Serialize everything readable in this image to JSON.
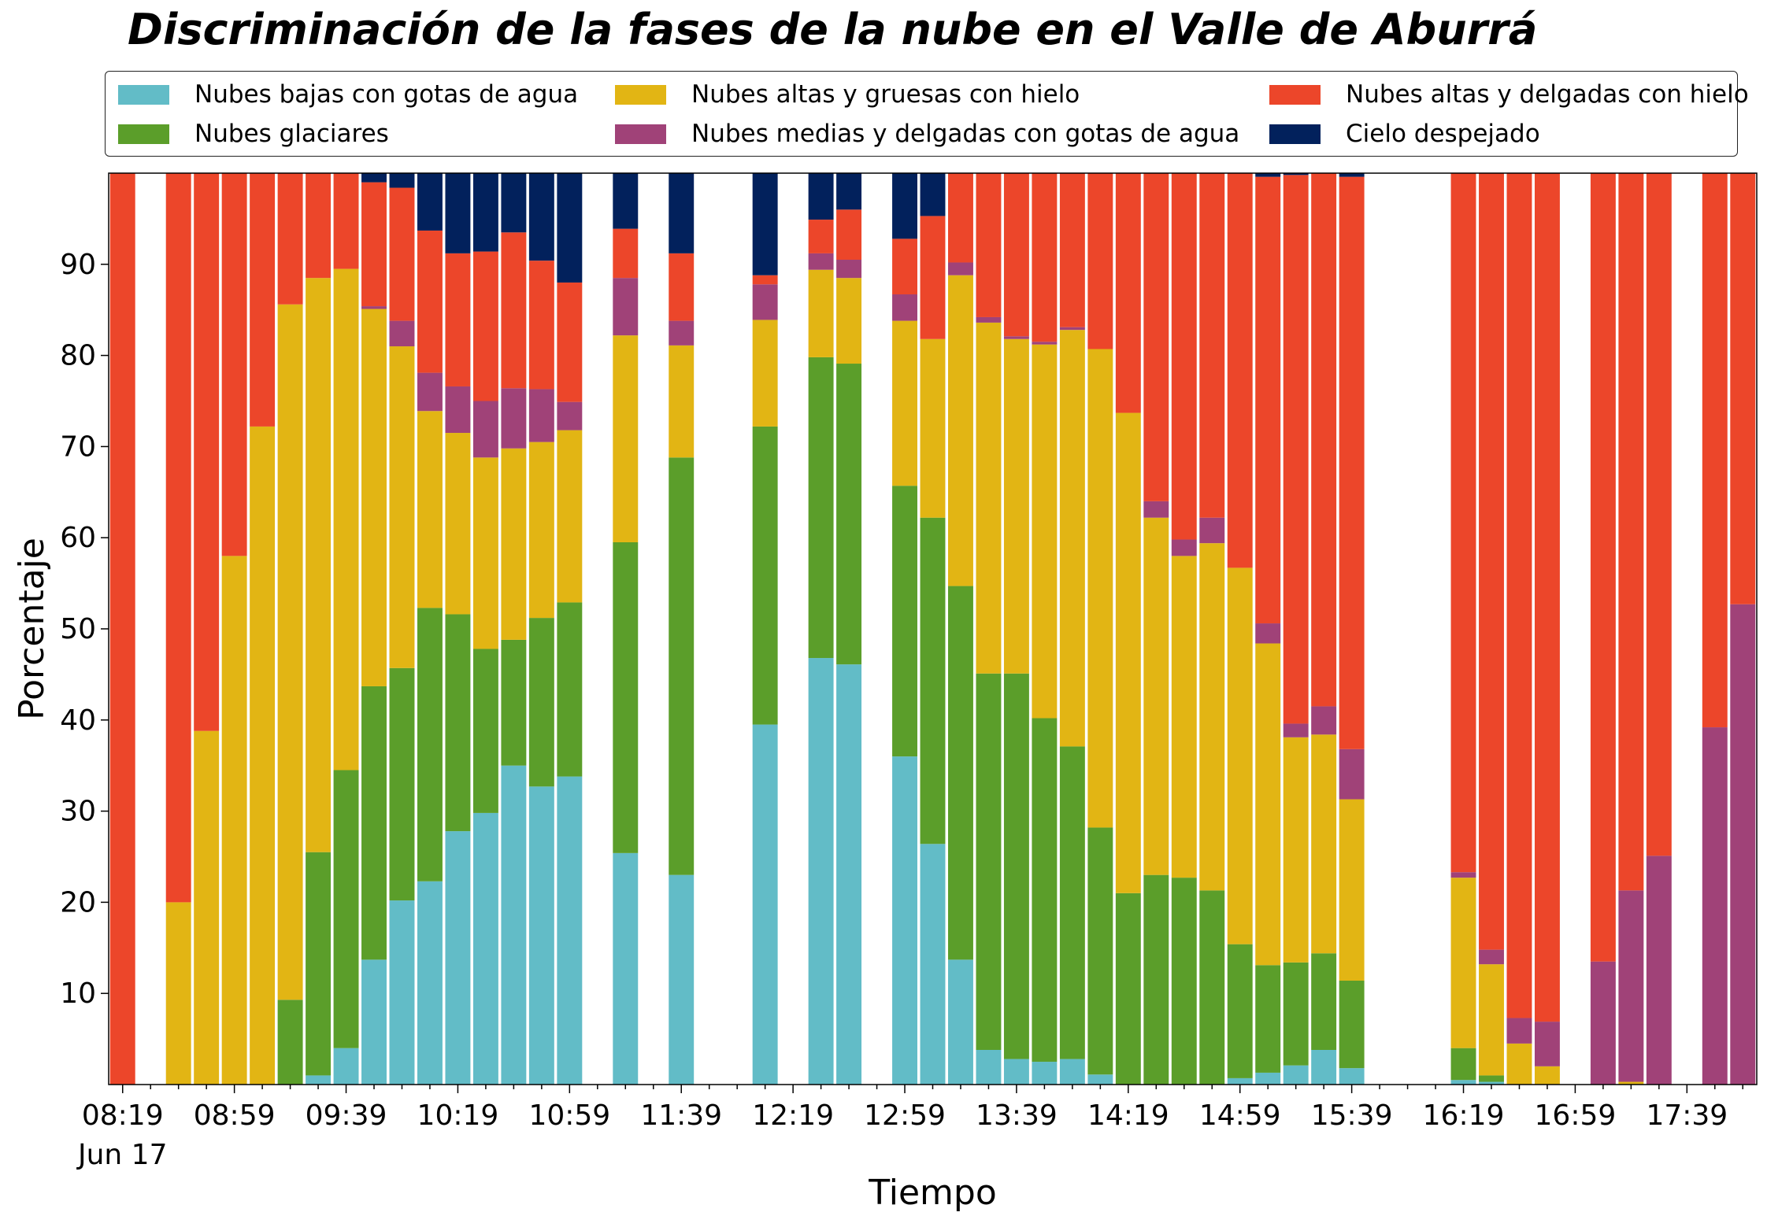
{
  "chart_data": {
    "type": "bar",
    "stacked": true,
    "title": "Discriminación de la fases de la nube en el Valle de Aburrá",
    "xlabel": "Tiempo",
    "ylabel": "Porcentaje",
    "ylim": [
      0,
      100
    ],
    "yticks": [
      10,
      20,
      30,
      40,
      50,
      60,
      70,
      80,
      90
    ],
    "x_interval_minutes": 10,
    "x_start_time": "08:19",
    "x_start_date": "Jun 17",
    "x_range_slots": [
      -0.5,
      58.5
    ],
    "xtick_labels": [
      "08:19",
      "08:59",
      "09:39",
      "10:19",
      "10:59",
      "11:39",
      "12:19",
      "12:59",
      "13:39",
      "14:19",
      "14:59",
      "15:39",
      "16:19",
      "16:59",
      "17:39"
    ],
    "xtick_sublabels": [
      "Jun 17"
    ],
    "grid": false,
    "legend_position": "top, above plot, 3 columns",
    "series": [
      {
        "name": "Nubes bajas con gotas de agua",
        "color": "#62BCC7"
      },
      {
        "name": "Nubes glaciares",
        "color": "#5B9E2A"
      },
      {
        "name": "Nubes altas y gruesas con hielo",
        "color": "#E2B514"
      },
      {
        "name": "Nubes medias y delgadas con gotas de agua",
        "color": "#A04278"
      },
      {
        "name": "Nubes altas y delgadas con hielo",
        "color": "#EC462A"
      },
      {
        "name": "Cielo despejado",
        "color": "#02215C"
      }
    ],
    "bars": [
      {
        "t": "08:19",
        "v": [
          0,
          0,
          0,
          0,
          100,
          0
        ]
      },
      {
        "t": "08:39",
        "v": [
          0,
          0,
          20,
          0,
          80,
          0
        ]
      },
      {
        "t": "08:49",
        "v": [
          0,
          0,
          38.8,
          0,
          61.2,
          0
        ]
      },
      {
        "t": "08:59",
        "v": [
          0,
          0,
          58,
          0,
          42,
          0
        ]
      },
      {
        "t": "09:09",
        "v": [
          0,
          0,
          72.2,
          0,
          27.8,
          0
        ]
      },
      {
        "t": "09:19",
        "v": [
          0,
          9.3,
          76.3,
          0,
          14.4,
          0
        ]
      },
      {
        "t": "09:29",
        "v": [
          1,
          24.5,
          63,
          0,
          11.5,
          0
        ]
      },
      {
        "t": "09:39",
        "v": [
          4,
          30.5,
          55,
          0,
          10.5,
          0
        ]
      },
      {
        "t": "09:49",
        "v": [
          13.7,
          30,
          41.4,
          0.3,
          13.6,
          1
        ]
      },
      {
        "t": "09:59",
        "v": [
          20.2,
          25.5,
          35.3,
          2.8,
          14.6,
          1.6
        ]
      },
      {
        "t": "10:09",
        "v": [
          22.3,
          30,
          21.6,
          4.2,
          15.6,
          6.3
        ]
      },
      {
        "t": "10:19",
        "v": [
          27.8,
          23.8,
          19.9,
          5.1,
          14.6,
          8.8
        ]
      },
      {
        "t": "10:29",
        "v": [
          29.8,
          18,
          21,
          6.2,
          16.4,
          8.6
        ]
      },
      {
        "t": "10:39",
        "v": [
          35,
          13.8,
          21,
          6.6,
          17.1,
          6.5
        ]
      },
      {
        "t": "10:49",
        "v": [
          32.7,
          18.5,
          19.3,
          5.8,
          14.1,
          9.6
        ]
      },
      {
        "t": "10:59",
        "v": [
          33.8,
          19.1,
          18.9,
          3.1,
          13.1,
          12
        ]
      },
      {
        "t": "11:19",
        "v": [
          25.4,
          34.1,
          22.7,
          6.3,
          5.4,
          6.1
        ]
      },
      {
        "t": "11:39",
        "v": [
          23,
          45.8,
          12.3,
          2.7,
          7.4,
          8.8
        ]
      },
      {
        "t": "12:09",
        "v": [
          39.5,
          32.7,
          11.7,
          3.9,
          1,
          11.2
        ]
      },
      {
        "t": "12:29",
        "v": [
          46.8,
          33,
          9.6,
          1.8,
          3.7,
          5.1
        ]
      },
      {
        "t": "12:39",
        "v": [
          46.1,
          33,
          9.4,
          2,
          5.5,
          4
        ]
      },
      {
        "t": "12:59",
        "v": [
          36,
          29.7,
          18.1,
          2.9,
          6.1,
          7.2
        ]
      },
      {
        "t": "13:09",
        "v": [
          26.4,
          35.8,
          19.6,
          0,
          13.5,
          4.7
        ]
      },
      {
        "t": "13:19",
        "v": [
          13.7,
          41,
          34.1,
          1.4,
          9.8,
          0
        ]
      },
      {
        "t": "13:29",
        "v": [
          3.8,
          41.3,
          38.5,
          0.6,
          15.8,
          0
        ]
      },
      {
        "t": "13:39",
        "v": [
          2.8,
          42.3,
          36.7,
          0.3,
          17.9,
          0
        ]
      },
      {
        "t": "13:49",
        "v": [
          2.5,
          37.7,
          41,
          0.3,
          18.5,
          0
        ]
      },
      {
        "t": "13:59",
        "v": [
          2.8,
          34.3,
          45.7,
          0.3,
          16.9,
          0
        ]
      },
      {
        "t": "14:09",
        "v": [
          1.1,
          27.1,
          52.5,
          0,
          19.3,
          0
        ]
      },
      {
        "t": "14:19",
        "v": [
          0,
          21,
          52.7,
          0,
          26.3,
          0
        ]
      },
      {
        "t": "14:29",
        "v": [
          0,
          23,
          39.2,
          1.8,
          36,
          0
        ]
      },
      {
        "t": "14:39",
        "v": [
          0,
          22.7,
          35.3,
          1.8,
          40.2,
          0
        ]
      },
      {
        "t": "14:49",
        "v": [
          0,
          21.3,
          38.1,
          2.8,
          37.8,
          0
        ]
      },
      {
        "t": "14:59",
        "v": [
          0.7,
          14.7,
          41.3,
          0,
          43.3,
          0
        ]
      },
      {
        "t": "15:09",
        "v": [
          1.3,
          11.8,
          35.3,
          2.2,
          49,
          0.4
        ]
      },
      {
        "t": "15:19",
        "v": [
          2.1,
          11.3,
          24.7,
          1.5,
          60.2,
          0.2
        ]
      },
      {
        "t": "15:29",
        "v": [
          3.8,
          10.6,
          24,
          3.1,
          58.5,
          0
        ]
      },
      {
        "t": "15:39",
        "v": [
          1.8,
          9.6,
          19.9,
          5.5,
          62.8,
          0.4
        ]
      },
      {
        "t": "16:19",
        "v": [
          0.5,
          3.5,
          18.7,
          0.6,
          76.7,
          0
        ]
      },
      {
        "t": "16:29",
        "v": [
          0.3,
          0.7,
          12.2,
          1.6,
          85.2,
          0
        ]
      },
      {
        "t": "16:39",
        "v": [
          0,
          0,
          4.5,
          2.8,
          92.7,
          0
        ]
      },
      {
        "t": "16:49",
        "v": [
          0,
          0,
          2,
          4.9,
          93.1,
          0
        ]
      },
      {
        "t": "17:09",
        "v": [
          0,
          0,
          0,
          13.5,
          86.5,
          0
        ]
      },
      {
        "t": "17:19",
        "v": [
          0,
          0,
          0.3,
          21,
          78.7,
          0
        ]
      },
      {
        "t": "17:29",
        "v": [
          0,
          0,
          0,
          25.1,
          74.9,
          0
        ]
      },
      {
        "t": "17:49",
        "v": [
          0,
          0,
          0,
          39.2,
          60.8,
          0
        ]
      },
      {
        "t": "17:59",
        "v": [
          0,
          0,
          0,
          52.7,
          47.3,
          0
        ]
      }
    ]
  }
}
